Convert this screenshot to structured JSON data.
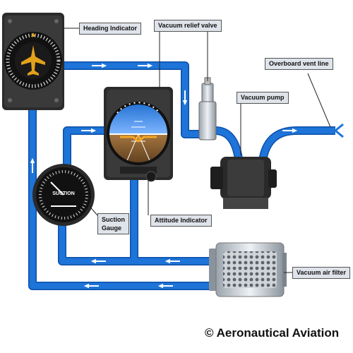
{
  "labels": {
    "heading_indicator": "Heading Indicator",
    "vacuum_relief_valve": "Vacuum relief valve",
    "overboard_vent_line": "Overboard vent line",
    "vacuum_pump": "Vacuum pump",
    "suction_gauge_line1": "Suction",
    "suction_gauge_line2": "Gauge",
    "attitude_indicator": "Attitude Indicator",
    "vacuum_air_filter": "Vacuum air filter"
  },
  "gauge_text": {
    "suction_face": "SUCTION"
  },
  "copyright": "© Aeronautical Aviation",
  "colors": {
    "pipe": "#1e74d8",
    "pipe_edge": "#0c4fa8",
    "background": "#ffffff",
    "label_bg": "#dfe3ea"
  }
}
